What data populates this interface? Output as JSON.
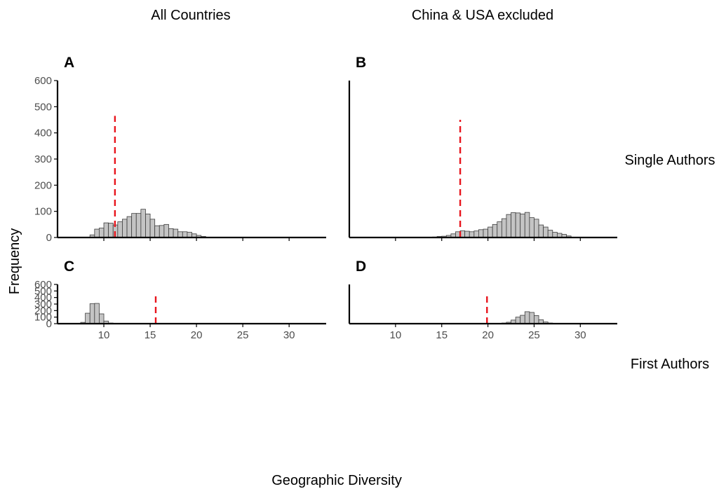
{
  "column_titles": [
    "All Countries",
    "China & USA excluded"
  ],
  "row_labels": [
    "Single Authors",
    "First Authors"
  ],
  "shared_xlabel": "Geographic Diversity",
  "shared_ylabel": "Frequency",
  "colors": {
    "bar_fill": "#c4c4c4",
    "bar_stroke": "#3d3d3d",
    "reference_line": "#e8141c",
    "axis": "#000000"
  },
  "chart_data": [
    {
      "panel": "A",
      "type": "bar",
      "subtype": "histogram",
      "column": "All Countries",
      "row": "Single Authors",
      "xlim": [
        5,
        34
      ],
      "ylim": [
        0,
        600
      ],
      "xticks": [
        10,
        15,
        20,
        25,
        30
      ],
      "show_xtick_labels": false,
      "yticks": [
        0,
        100,
        200,
        300,
        400,
        500,
        600
      ],
      "bin_width": 0.5,
      "bins": [
        {
          "x": 8.5,
          "y": 10
        },
        {
          "x": 9.0,
          "y": 32
        },
        {
          "x": 9.5,
          "y": 36
        },
        {
          "x": 10.0,
          "y": 56
        },
        {
          "x": 10.5,
          "y": 55
        },
        {
          "x": 11.0,
          "y": 48
        },
        {
          "x": 11.5,
          "y": 60
        },
        {
          "x": 12.0,
          "y": 70
        },
        {
          "x": 12.5,
          "y": 80
        },
        {
          "x": 13.0,
          "y": 92
        },
        {
          "x": 13.5,
          "y": 92
        },
        {
          "x": 14.0,
          "y": 108
        },
        {
          "x": 14.5,
          "y": 90
        },
        {
          "x": 15.0,
          "y": 70
        },
        {
          "x": 15.5,
          "y": 45
        },
        {
          "x": 16.0,
          "y": 46
        },
        {
          "x": 16.5,
          "y": 50
        },
        {
          "x": 17.0,
          "y": 34
        },
        {
          "x": 17.5,
          "y": 32
        },
        {
          "x": 18.0,
          "y": 22
        },
        {
          "x": 18.5,
          "y": 22
        },
        {
          "x": 19.0,
          "y": 20
        },
        {
          "x": 19.5,
          "y": 14
        },
        {
          "x": 20.0,
          "y": 8
        },
        {
          "x": 20.5,
          "y": 4
        }
      ],
      "reference_line_x": 11.2,
      "reference_line_top": 465
    },
    {
      "panel": "B",
      "type": "bar",
      "subtype": "histogram",
      "column": "China & USA excluded",
      "row": "Single Authors",
      "xlim": [
        5,
        34
      ],
      "ylim": [
        0,
        600
      ],
      "xticks": [
        10,
        15,
        20,
        25,
        30
      ],
      "show_xtick_labels": false,
      "yticks": [
        0,
        100,
        200,
        300,
        400,
        500,
        600
      ],
      "show_ytick_labels": false,
      "bin_width": 0.5,
      "bins": [
        {
          "x": 14.0,
          "y": 2
        },
        {
          "x": 14.5,
          "y": 4
        },
        {
          "x": 15.0,
          "y": 5
        },
        {
          "x": 15.5,
          "y": 8
        },
        {
          "x": 16.0,
          "y": 14
        },
        {
          "x": 16.5,
          "y": 22
        },
        {
          "x": 17.0,
          "y": 26
        },
        {
          "x": 17.5,
          "y": 24
        },
        {
          "x": 18.0,
          "y": 22
        },
        {
          "x": 18.5,
          "y": 25
        },
        {
          "x": 19.0,
          "y": 30
        },
        {
          "x": 19.5,
          "y": 32
        },
        {
          "x": 20.0,
          "y": 40
        },
        {
          "x": 20.5,
          "y": 50
        },
        {
          "x": 21.0,
          "y": 60
        },
        {
          "x": 21.5,
          "y": 72
        },
        {
          "x": 22.0,
          "y": 88
        },
        {
          "x": 22.5,
          "y": 95
        },
        {
          "x": 23.0,
          "y": 94
        },
        {
          "x": 23.5,
          "y": 90
        },
        {
          "x": 24.0,
          "y": 96
        },
        {
          "x": 24.5,
          "y": 76
        },
        {
          "x": 25.0,
          "y": 70
        },
        {
          "x": 25.5,
          "y": 48
        },
        {
          "x": 26.0,
          "y": 40
        },
        {
          "x": 26.5,
          "y": 28
        },
        {
          "x": 27.0,
          "y": 20
        },
        {
          "x": 27.5,
          "y": 16
        },
        {
          "x": 28.0,
          "y": 12
        },
        {
          "x": 28.5,
          "y": 6
        }
      ],
      "reference_line_x": 17.0,
      "reference_line_top": 450
    },
    {
      "panel": "C",
      "type": "bar",
      "subtype": "histogram",
      "column": "All Countries",
      "row": "First Authors",
      "xlim": [
        5,
        34
      ],
      "ylim": [
        0,
        600
      ],
      "xticks": [
        10,
        15,
        20,
        25,
        30
      ],
      "show_xtick_labels": true,
      "yticks": [
        0,
        100,
        200,
        300,
        400,
        500,
        600
      ],
      "bin_width": 0.5,
      "bins": [
        {
          "x": 7.5,
          "y": 20
        },
        {
          "x": 8.0,
          "y": 160
        },
        {
          "x": 8.5,
          "y": 305
        },
        {
          "x": 9.0,
          "y": 310
        },
        {
          "x": 9.5,
          "y": 150
        },
        {
          "x": 10.0,
          "y": 40
        },
        {
          "x": 10.5,
          "y": 10
        }
      ],
      "reference_line_x": 15.6,
      "reference_line_top": 462
    },
    {
      "panel": "D",
      "type": "bar",
      "subtype": "histogram",
      "column": "China & USA excluded",
      "row": "First Authors",
      "xlim": [
        5,
        34
      ],
      "ylim": [
        0,
        600
      ],
      "xticks": [
        10,
        15,
        20,
        25,
        30
      ],
      "show_xtick_labels": true,
      "yticks": [
        0,
        100,
        200,
        300,
        400,
        500,
        600
      ],
      "show_ytick_labels": false,
      "bin_width": 0.5,
      "bins": [
        {
          "x": 21.0,
          "y": 4
        },
        {
          "x": 21.5,
          "y": 10
        },
        {
          "x": 22.0,
          "y": 22
        },
        {
          "x": 22.5,
          "y": 55
        },
        {
          "x": 23.0,
          "y": 100
        },
        {
          "x": 23.5,
          "y": 128
        },
        {
          "x": 24.0,
          "y": 183
        },
        {
          "x": 24.5,
          "y": 172
        },
        {
          "x": 25.0,
          "y": 124
        },
        {
          "x": 25.5,
          "y": 60
        },
        {
          "x": 26.0,
          "y": 26
        },
        {
          "x": 26.5,
          "y": 10
        }
      ],
      "reference_line_x": 19.9,
      "reference_line_top": 462
    }
  ]
}
